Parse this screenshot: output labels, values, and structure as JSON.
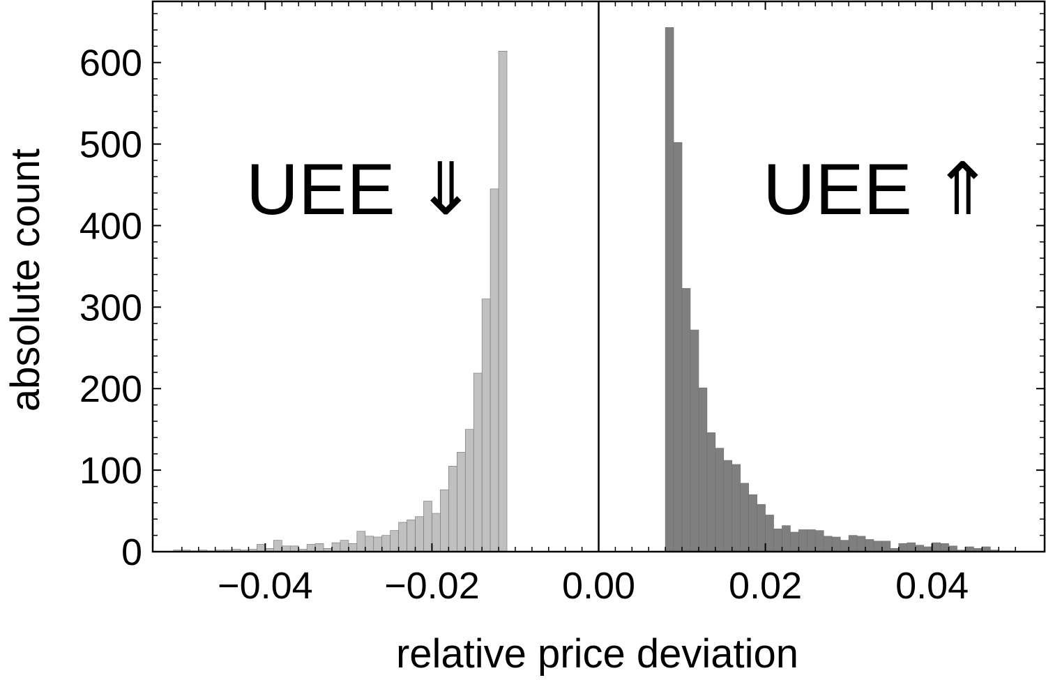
{
  "chart_data": {
    "type": "bar",
    "xlabel": "relative price deviation",
    "ylabel": "absolute count",
    "xlim": [
      -0.0535,
      0.0535
    ],
    "ylim": [
      0,
      675
    ],
    "bin_width": 0.001,
    "x_ticks": [
      {
        "value": -0.04,
        "label": "−0.04"
      },
      {
        "value": -0.02,
        "label": "−0.02"
      },
      {
        "value": 0.0,
        "label": "0.00"
      },
      {
        "value": 0.02,
        "label": "0.02"
      },
      {
        "value": 0.04,
        "label": "0.04"
      }
    ],
    "y_ticks": [
      {
        "value": 0,
        "label": "0"
      },
      {
        "value": 100,
        "label": "100"
      },
      {
        "value": 200,
        "label": "200"
      },
      {
        "value": 300,
        "label": "300"
      },
      {
        "value": 400,
        "label": "400"
      },
      {
        "value": 500,
        "label": "500"
      },
      {
        "value": 600,
        "label": "600"
      }
    ],
    "annotations": [
      {
        "text": "UEE ⇓",
        "x": -0.0285,
        "y": 445
      },
      {
        "text": "UEE ⇑",
        "x": 0.0335,
        "y": 445
      }
    ],
    "series": [
      {
        "color": "#c0c0c0",
        "bins": [
          {
            "x0": -0.051,
            "value": 2
          },
          {
            "x0": -0.05,
            "value": 2
          },
          {
            "x0": -0.049,
            "value": 1
          },
          {
            "x0": -0.048,
            "value": 2
          },
          {
            "x0": -0.047,
            "value": 1
          },
          {
            "x0": -0.046,
            "value": 2
          },
          {
            "x0": -0.045,
            "value": 2
          },
          {
            "x0": -0.044,
            "value": 3
          },
          {
            "x0": -0.043,
            "value": 2
          },
          {
            "x0": -0.042,
            "value": 3
          },
          {
            "x0": -0.041,
            "value": 9
          },
          {
            "x0": -0.04,
            "value": 4
          },
          {
            "x0": -0.039,
            "value": 14
          },
          {
            "x0": -0.038,
            "value": 7
          },
          {
            "x0": -0.037,
            "value": 7
          },
          {
            "x0": -0.036,
            "value": 3
          },
          {
            "x0": -0.035,
            "value": 9
          },
          {
            "x0": -0.034,
            "value": 10
          },
          {
            "x0": -0.033,
            "value": 4
          },
          {
            "x0": -0.032,
            "value": 11
          },
          {
            "x0": -0.031,
            "value": 14
          },
          {
            "x0": -0.03,
            "value": 10
          },
          {
            "x0": -0.029,
            "value": 25
          },
          {
            "x0": -0.028,
            "value": 19
          },
          {
            "x0": -0.027,
            "value": 18
          },
          {
            "x0": -0.026,
            "value": 20
          },
          {
            "x0": -0.025,
            "value": 26
          },
          {
            "x0": -0.024,
            "value": 36
          },
          {
            "x0": -0.023,
            "value": 39
          },
          {
            "x0": -0.022,
            "value": 43
          },
          {
            "x0": -0.021,
            "value": 62
          },
          {
            "x0": -0.02,
            "value": 47
          },
          {
            "x0": -0.019,
            "value": 76
          },
          {
            "x0": -0.018,
            "value": 105
          },
          {
            "x0": -0.017,
            "value": 122
          },
          {
            "x0": -0.016,
            "value": 150
          },
          {
            "x0": -0.015,
            "value": 219
          },
          {
            "x0": -0.014,
            "value": 310
          },
          {
            "x0": -0.013,
            "value": 445
          },
          {
            "x0": -0.012,
            "value": 614
          }
        ]
      },
      {
        "color": "#7f7f7f",
        "bins": [
          {
            "x0": 0.008,
            "value": 643
          },
          {
            "x0": 0.009,
            "value": 502
          },
          {
            "x0": 0.01,
            "value": 323
          },
          {
            "x0": 0.011,
            "value": 272
          },
          {
            "x0": 0.012,
            "value": 201
          },
          {
            "x0": 0.013,
            "value": 146
          },
          {
            "x0": 0.014,
            "value": 127
          },
          {
            "x0": 0.015,
            "value": 112
          },
          {
            "x0": 0.016,
            "value": 107
          },
          {
            "x0": 0.017,
            "value": 84
          },
          {
            "x0": 0.018,
            "value": 70
          },
          {
            "x0": 0.019,
            "value": 58
          },
          {
            "x0": 0.02,
            "value": 45
          },
          {
            "x0": 0.021,
            "value": 28
          },
          {
            "x0": 0.022,
            "value": 32
          },
          {
            "x0": 0.023,
            "value": 24
          },
          {
            "x0": 0.024,
            "value": 27
          },
          {
            "x0": 0.025,
            "value": 27
          },
          {
            "x0": 0.026,
            "value": 26
          },
          {
            "x0": 0.027,
            "value": 19
          },
          {
            "x0": 0.028,
            "value": 18
          },
          {
            "x0": 0.029,
            "value": 14
          },
          {
            "x0": 0.03,
            "value": 20
          },
          {
            "x0": 0.031,
            "value": 19
          },
          {
            "x0": 0.032,
            "value": 15
          },
          {
            "x0": 0.033,
            "value": 13
          },
          {
            "x0": 0.034,
            "value": 13
          },
          {
            "x0": 0.035,
            "value": 4
          },
          {
            "x0": 0.036,
            "value": 10
          },
          {
            "x0": 0.037,
            "value": 11
          },
          {
            "x0": 0.038,
            "value": 8
          },
          {
            "x0": 0.039,
            "value": 6
          },
          {
            "x0": 0.04,
            "value": 11
          },
          {
            "x0": 0.041,
            "value": 10
          },
          {
            "x0": 0.042,
            "value": 7
          },
          {
            "x0": 0.043,
            "value": 2
          },
          {
            "x0": 0.044,
            "value": 6
          },
          {
            "x0": 0.045,
            "value": 4
          },
          {
            "x0": 0.046,
            "value": 6
          },
          {
            "x0": 0.047,
            "value": 2
          },
          {
            "x0": 0.048,
            "value": 1
          },
          {
            "x0": 0.049,
            "value": 1
          }
        ]
      }
    ]
  }
}
